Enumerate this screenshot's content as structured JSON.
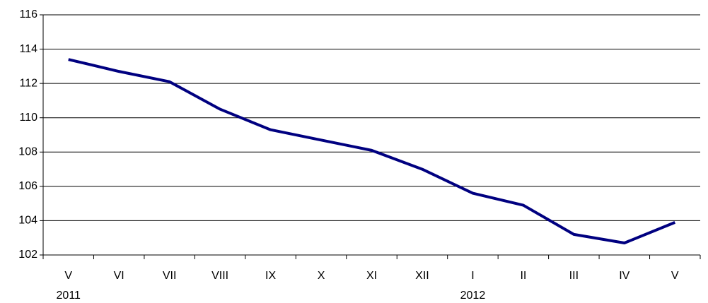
{
  "chart_data": {
    "type": "line",
    "categories": [
      "V",
      "VI",
      "VII",
      "VIII",
      "IX",
      "X",
      "XI",
      "XII",
      "I",
      "II",
      "III",
      "IV",
      "V"
    ],
    "years": [
      "2011",
      null,
      null,
      null,
      null,
      null,
      null,
      null,
      "2012",
      null,
      null,
      null,
      null
    ],
    "series": [
      {
        "color": "#000080",
        "values": [
          113.4,
          112.7,
          112.1,
          110.5,
          109.3,
          108.7,
          108.1,
          107.0,
          105.6,
          104.9,
          103.2,
          102.7,
          103.9
        ]
      }
    ],
    "ylim": [
      102,
      116
    ],
    "yticks": [
      102,
      104,
      106,
      108,
      110,
      112,
      114,
      116
    ],
    "grid": true
  }
}
